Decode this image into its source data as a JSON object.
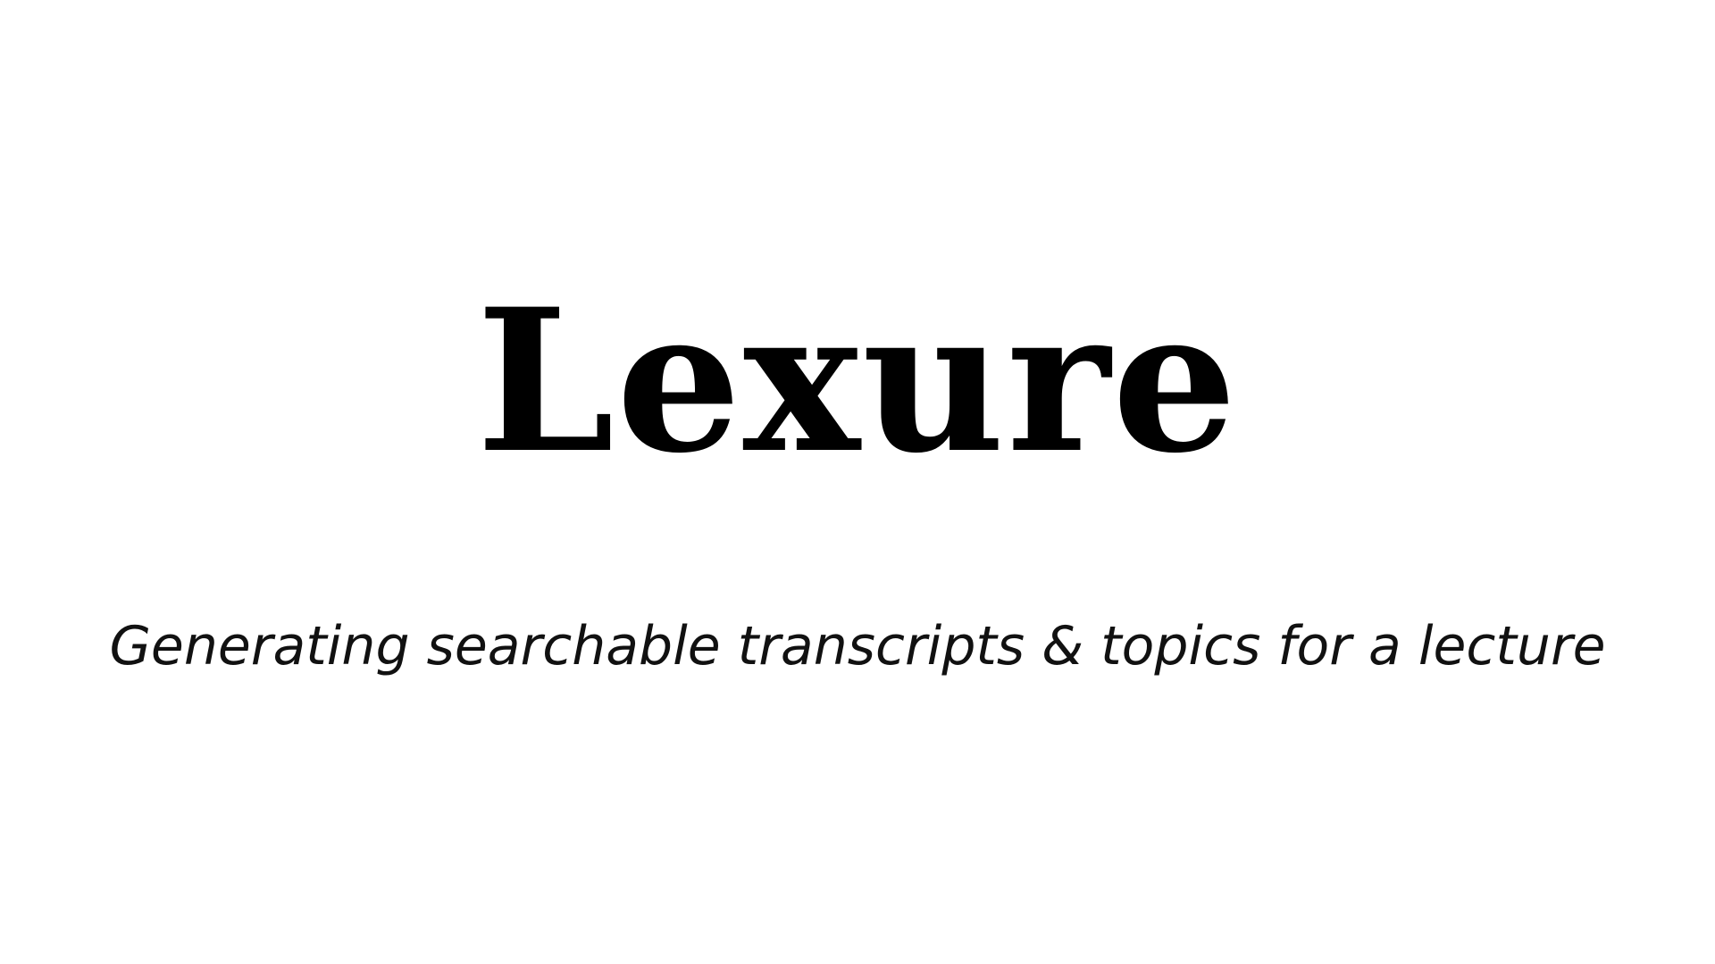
{
  "slide": {
    "title": "Lexure",
    "subtitle": "Generating searchable transcripts & topics for a lecture"
  },
  "colors": {
    "background": "#ffffff",
    "title_text": "#000000",
    "subtitle_text": "#111111"
  }
}
